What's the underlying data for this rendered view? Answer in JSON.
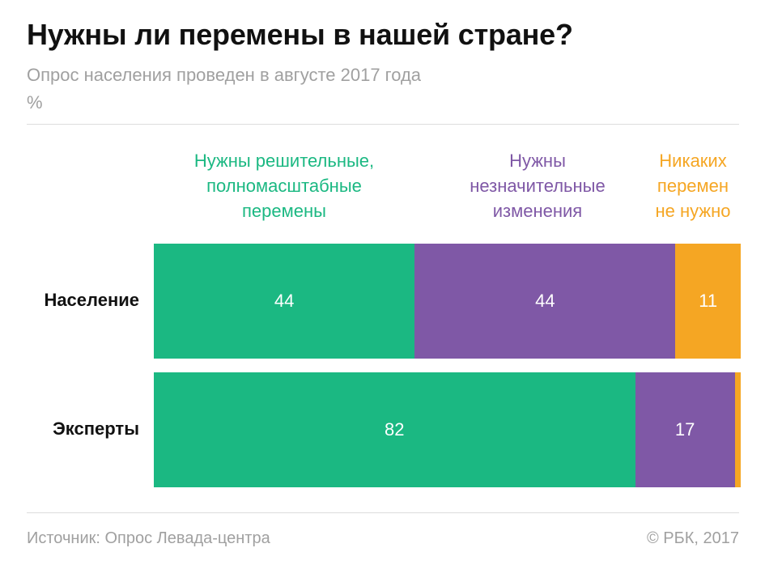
{
  "header": {
    "title": "Нужны ли перемены в нашей стране?",
    "subtitle": "Опрос населения проведен в августе 2017 года",
    "unit": "%"
  },
  "footer": {
    "source": "Источник: Опрос Левада-центра",
    "copyright": "© РБК, 2017"
  },
  "colors": {
    "green": "#1bb882",
    "purple": "#7f58a6",
    "orange": "#f5a623"
  },
  "chart_data": {
    "type": "bar",
    "orientation": "horizontal",
    "stacked": true,
    "categories": [
      "Население",
      "Эксперты"
    ],
    "series": [
      {
        "name": "Нужны решительные,\nполномасштабные\nперемены",
        "values": [
          44,
          82
        ],
        "color": "#1bb882"
      },
      {
        "name": "Нужны\nнезначительные\nизменения",
        "values": [
          44,
          17
        ],
        "color": "#7f58a6"
      },
      {
        "name": "Никаких\nперемен\nне нужно",
        "values": [
          11,
          1
        ],
        "color": "#f5a623"
      }
    ],
    "value_labels": [
      [
        "44",
        "44",
        "11"
      ],
      [
        "82",
        "17",
        ""
      ]
    ],
    "legend_position": "top",
    "grid": false
  }
}
